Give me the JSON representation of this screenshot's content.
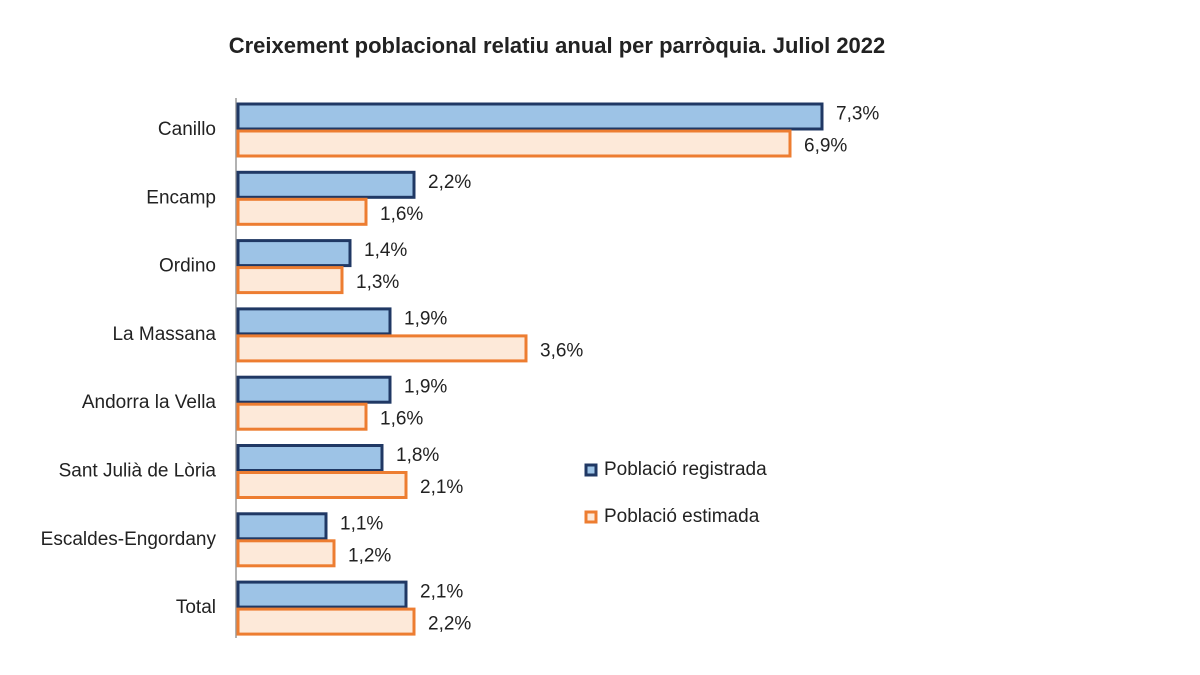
{
  "chart_data": {
    "type": "hbar",
    "title": "Creixement poblacional relatiu anual per parròquia. Juliol 2022",
    "categories": [
      "Canillo",
      "Encamp",
      "Ordino",
      "La Massana",
      "Andorra la Vella",
      "Sant Julià de Lòria",
      "Escaldes-Engordany",
      "Total"
    ],
    "series": [
      {
        "name": "Població registrada",
        "color": "#9dc3e6",
        "edge": "#203864",
        "values": [
          7.3,
          2.2,
          1.4,
          1.9,
          1.9,
          1.8,
          1.1,
          2.1
        ],
        "value_labels": [
          "7,3%",
          "2,2%",
          "1,4%",
          "1,9%",
          "1,9%",
          "1,8%",
          "1,1%",
          "2,1%"
        ]
      },
      {
        "name": "Població estimada",
        "color": "#fde9d9",
        "edge": "#ed7d31",
        "values": [
          6.9,
          1.6,
          1.3,
          3.6,
          1.6,
          2.1,
          1.2,
          2.2
        ],
        "value_labels": [
          "6,9%",
          "1,6%",
          "1,3%",
          "3,6%",
          "1,6%",
          "2,1%",
          "1,2%",
          "2,2%"
        ]
      }
    ]
  }
}
